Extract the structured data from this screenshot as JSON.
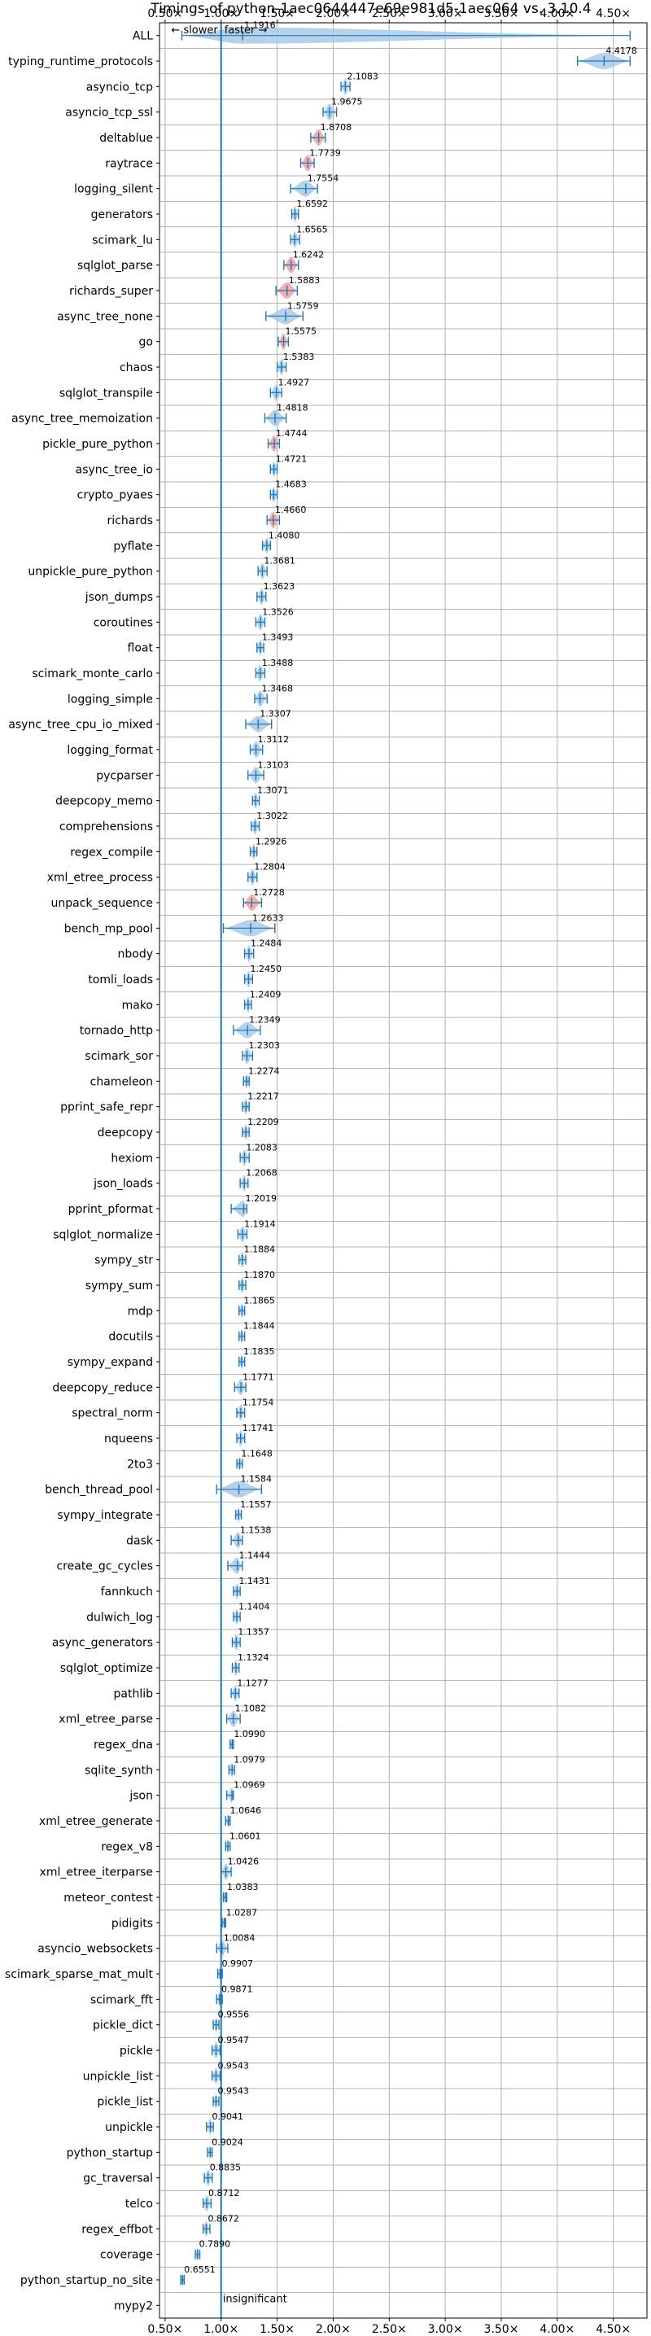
{
  "chart_data": {
    "type": "violin",
    "title": "Timings of python-1aec0644447e69e981d5-1aec064 vs. 3.10.4",
    "xlim": [
      0.45,
      4.8
    ],
    "x_ticks": [
      0.5,
      1.0,
      1.5,
      2.0,
      2.5,
      3.0,
      3.5,
      4.0,
      4.5
    ],
    "x_tick_labels": [
      "0.50×",
      "1.00×",
      "1.50×",
      "2.00×",
      "2.50×",
      "3.00×",
      "3.50×",
      "4.00×",
      "4.50×"
    ],
    "reference_line": 1.0,
    "grid": true,
    "direction_labels": [
      "← slower",
      "faster →"
    ],
    "bottom_note": "insignificant",
    "colors": {
      "violin": "#a9c9e6",
      "significant_red": "#f2a0a0",
      "line": "#1f77b4",
      "grid": "#b0b0b0"
    },
    "categories": [
      "ALL",
      "typing_runtime_protocols",
      "asyncio_tcp",
      "asyncio_tcp_ssl",
      "deltablue",
      "raytrace",
      "logging_silent",
      "generators",
      "scimark_lu",
      "sqlglot_parse",
      "richards_super",
      "async_tree_none",
      "go",
      "chaos",
      "sqlglot_transpile",
      "async_tree_memoization",
      "pickle_pure_python",
      "async_tree_io",
      "crypto_pyaes",
      "richards",
      "pyflate",
      "unpickle_pure_python",
      "json_dumps",
      "coroutines",
      "float",
      "scimark_monte_carlo",
      "logging_simple",
      "async_tree_cpu_io_mixed",
      "logging_format",
      "pycparser",
      "deepcopy_memo",
      "comprehensions",
      "regex_compile",
      "xml_etree_process",
      "unpack_sequence",
      "bench_mp_pool",
      "nbody",
      "tomli_loads",
      "mako",
      "tornado_http",
      "scimark_sor",
      "chameleon",
      "pprint_safe_repr",
      "deepcopy",
      "hexiom",
      "json_loads",
      "pprint_pformat",
      "sqlglot_normalize",
      "sympy_str",
      "sympy_sum",
      "mdp",
      "docutils",
      "sympy_expand",
      "deepcopy_reduce",
      "spectral_norm",
      "nqueens",
      "2to3",
      "bench_thread_pool",
      "sympy_integrate",
      "dask",
      "create_gc_cycles",
      "fannkuch",
      "dulwich_log",
      "async_generators",
      "sqlglot_optimize",
      "pathlib",
      "xml_etree_parse",
      "regex_dna",
      "sqlite_synth",
      "json",
      "xml_etree_generate",
      "regex_v8",
      "xml_etree_iterparse",
      "meteor_contest",
      "pidigits",
      "asyncio_websockets",
      "scimark_sparse_mat_mult",
      "scimark_fft",
      "pickle_dict",
      "pickle",
      "unpickle_list",
      "pickle_list",
      "unpickle",
      "python_startup",
      "gc_traversal",
      "telco",
      "regex_effbot",
      "coverage",
      "python_startup_no_site",
      "mypy2"
    ],
    "values": [
      1.1916,
      4.4178,
      2.1083,
      1.9675,
      1.8708,
      1.7739,
      1.7554,
      1.6592,
      1.6565,
      1.6242,
      1.5883,
      1.5759,
      1.5575,
      1.5383,
      1.4927,
      1.4818,
      1.4744,
      1.4721,
      1.4683,
      1.466,
      1.408,
      1.3681,
      1.3623,
      1.3526,
      1.3493,
      1.3488,
      1.3468,
      1.3307,
      1.3112,
      1.3103,
      1.3071,
      1.3022,
      1.2926,
      1.2804,
      1.2728,
      1.2633,
      1.2484,
      1.245,
      1.2409,
      1.2349,
      1.2303,
      1.2274,
      1.2217,
      1.2209,
      1.2083,
      1.2068,
      1.2019,
      1.1914,
      1.1884,
      1.187,
      1.1865,
      1.1844,
      1.1835,
      1.1771,
      1.1754,
      1.1741,
      1.1648,
      1.1584,
      1.1557,
      1.1538,
      1.1444,
      1.1431,
      1.1404,
      1.1357,
      1.1324,
      1.1277,
      1.1082,
      1.099,
      1.0979,
      1.0969,
      1.0646,
      1.0601,
      1.0426,
      1.0383,
      1.0287,
      1.0084,
      0.9907,
      0.9871,
      0.9556,
      0.9547,
      0.9543,
      0.9543,
      0.9041,
      0.9024,
      0.8835,
      0.8712,
      0.8672,
      0.789,
      0.6551,
      null
    ],
    "value_labels": [
      "1.1916",
      "4.4178",
      "2.1083",
      "1.9675",
      "1.8708",
      "1.7739",
      "1.7554",
      "1.6592",
      "1.6565",
      "1.6242",
      "1.5883",
      "1.5759",
      "1.5575",
      "1.5383",
      "1.4927",
      "1.4818",
      "1.4744",
      "1.4721",
      "1.4683",
      "1.4660",
      "1.4080",
      "1.3681",
      "1.3623",
      "1.3526",
      "1.3493",
      "1.3488",
      "1.3468",
      "1.3307",
      "1.3112",
      "1.3103",
      "1.3071",
      "1.3022",
      "1.2926",
      "1.2804",
      "1.2728",
      "1.2633",
      "1.2484",
      "1.2450",
      "1.2409",
      "1.2349",
      "1.2303",
      "1.2274",
      "1.2217",
      "1.2209",
      "1.2083",
      "1.2068",
      "1.2019",
      "1.1914",
      "1.1884",
      "1.1870",
      "1.1865",
      "1.1844",
      "1.1835",
      "1.1771",
      "1.1754",
      "1.1741",
      "1.1648",
      "1.1584",
      "1.1557",
      "1.1538",
      "1.1444",
      "1.1431",
      "1.1404",
      "1.1357",
      "1.1324",
      "1.1277",
      "1.1082",
      "1.0990",
      "1.0979",
      "1.0969",
      "1.0646",
      "1.0601",
      "1.0426",
      "1.0383",
      "1.0287",
      "1.0084",
      "0.9907",
      "0.9871",
      "0.9556",
      "0.9547",
      "0.9543",
      "0.9543",
      "0.9041",
      "0.9024",
      "0.8835",
      "0.8712",
      "0.8672",
      "0.7890",
      "0.6551",
      ""
    ],
    "ranges": [
      [
        0.65,
        4.65
      ],
      [
        4.18,
        4.65
      ],
      [
        2.07,
        2.15
      ],
      [
        1.91,
        2.03
      ],
      [
        1.8,
        1.93
      ],
      [
        1.71,
        1.83
      ],
      [
        1.62,
        1.86
      ],
      [
        1.63,
        1.69
      ],
      [
        1.62,
        1.7
      ],
      [
        1.56,
        1.69
      ],
      [
        1.49,
        1.68
      ],
      [
        1.4,
        1.73
      ],
      [
        1.51,
        1.6
      ],
      [
        1.5,
        1.58
      ],
      [
        1.44,
        1.54
      ],
      [
        1.39,
        1.58
      ],
      [
        1.42,
        1.52
      ],
      [
        1.44,
        1.5
      ],
      [
        1.44,
        1.5
      ],
      [
        1.41,
        1.52
      ],
      [
        1.37,
        1.44
      ],
      [
        1.33,
        1.41
      ],
      [
        1.32,
        1.4
      ],
      [
        1.31,
        1.39
      ],
      [
        1.32,
        1.38
      ],
      [
        1.31,
        1.39
      ],
      [
        1.3,
        1.41
      ],
      [
        1.22,
        1.45
      ],
      [
        1.26,
        1.37
      ],
      [
        1.24,
        1.38
      ],
      [
        1.28,
        1.34
      ],
      [
        1.27,
        1.34
      ],
      [
        1.26,
        1.32
      ],
      [
        1.24,
        1.32
      ],
      [
        1.2,
        1.36
      ],
      [
        1.02,
        1.48
      ],
      [
        1.21,
        1.29
      ],
      [
        1.21,
        1.28
      ],
      [
        1.21,
        1.27
      ],
      [
        1.11,
        1.35
      ],
      [
        1.19,
        1.28
      ],
      [
        1.2,
        1.25
      ],
      [
        1.19,
        1.25
      ],
      [
        1.19,
        1.25
      ],
      [
        1.17,
        1.25
      ],
      [
        1.17,
        1.24
      ],
      [
        1.09,
        1.23
      ],
      [
        1.15,
        1.23
      ],
      [
        1.16,
        1.22
      ],
      [
        1.16,
        1.22
      ],
      [
        1.16,
        1.21
      ],
      [
        1.16,
        1.21
      ],
      [
        1.16,
        1.21
      ],
      [
        1.12,
        1.22
      ],
      [
        1.14,
        1.21
      ],
      [
        1.14,
        1.21
      ],
      [
        1.14,
        1.19
      ],
      [
        0.96,
        1.36
      ],
      [
        1.13,
        1.18
      ],
      [
        1.09,
        1.19
      ],
      [
        1.06,
        1.19
      ],
      [
        1.11,
        1.17
      ],
      [
        1.11,
        1.17
      ],
      [
        1.1,
        1.17
      ],
      [
        1.1,
        1.16
      ],
      [
        1.09,
        1.16
      ],
      [
        1.05,
        1.17
      ],
      [
        1.08,
        1.11
      ],
      [
        1.07,
        1.12
      ],
      [
        1.05,
        1.11
      ],
      [
        1.04,
        1.08
      ],
      [
        1.04,
        1.08
      ],
      [
        1.0,
        1.09
      ],
      [
        1.02,
        1.05
      ],
      [
        1.01,
        1.04
      ],
      [
        0.96,
        1.06
      ],
      [
        0.97,
        1.01
      ],
      [
        0.96,
        1.01
      ],
      [
        0.93,
        0.98
      ],
      [
        0.92,
        0.99
      ],
      [
        0.92,
        0.99
      ],
      [
        0.93,
        0.98
      ],
      [
        0.87,
        0.93
      ],
      [
        0.88,
        0.92
      ],
      [
        0.85,
        0.92
      ],
      [
        0.84,
        0.91
      ],
      [
        0.84,
        0.9
      ],
      [
        0.77,
        0.81
      ],
      [
        0.64,
        0.67
      ],
      null
    ],
    "red_rows": [
      "deltablue",
      "raytrace",
      "sqlglot_parse",
      "richards_super",
      "go",
      "pickle_pure_python",
      "richards",
      "unpack_sequence"
    ]
  }
}
